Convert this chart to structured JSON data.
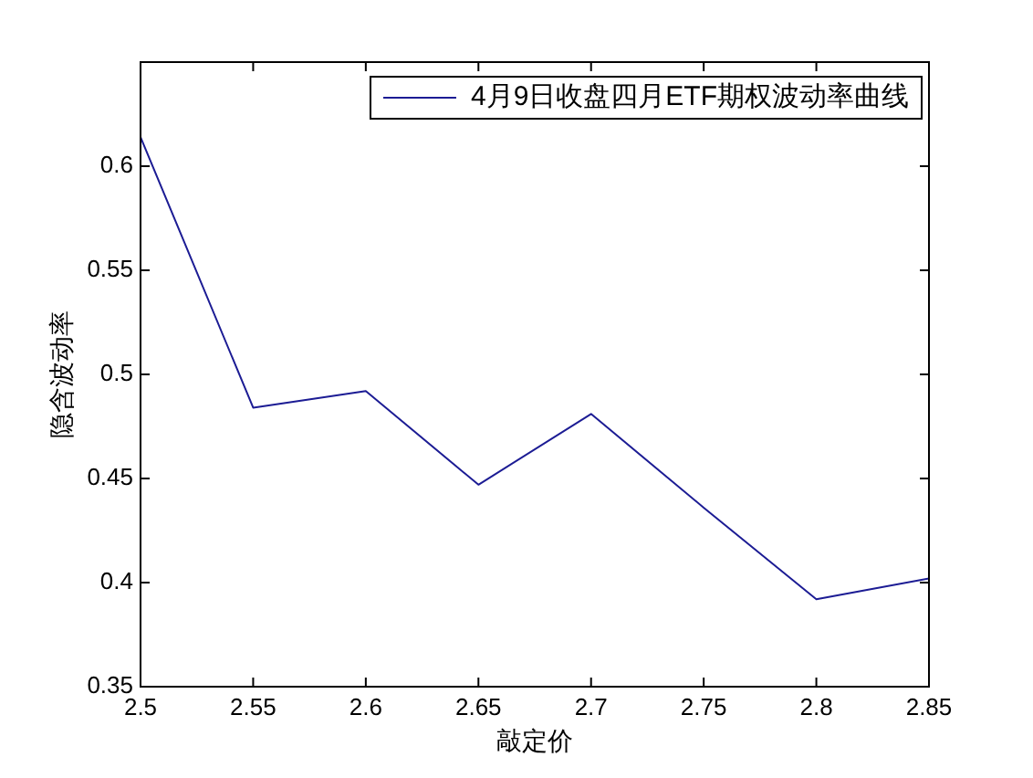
{
  "chart_data": {
    "type": "line",
    "xlabel": "敲定价",
    "ylabel": "隐含波动率",
    "x": [
      2.5,
      2.55,
      2.6,
      2.65,
      2.7,
      2.75,
      2.8,
      2.85
    ],
    "series": [
      {
        "name": "4月9日收盘四月ETF期权波动率曲线",
        "color": "#1c1c94",
        "values": [
          0.614,
          0.484,
          0.492,
          0.447,
          0.481,
          0.436,
          0.392,
          0.402
        ]
      }
    ],
    "xlim": [
      2.5,
      2.85
    ],
    "ylim": [
      0.35,
      0.65
    ],
    "xticks": [
      2.5,
      2.55,
      2.6,
      2.65,
      2.7,
      2.75,
      2.8,
      2.85
    ],
    "yticks": [
      0.35,
      0.4,
      0.45,
      0.5,
      0.55,
      0.6
    ],
    "grid": false,
    "legend": "top right",
    "marker": "none",
    "line_style": "solid"
  }
}
